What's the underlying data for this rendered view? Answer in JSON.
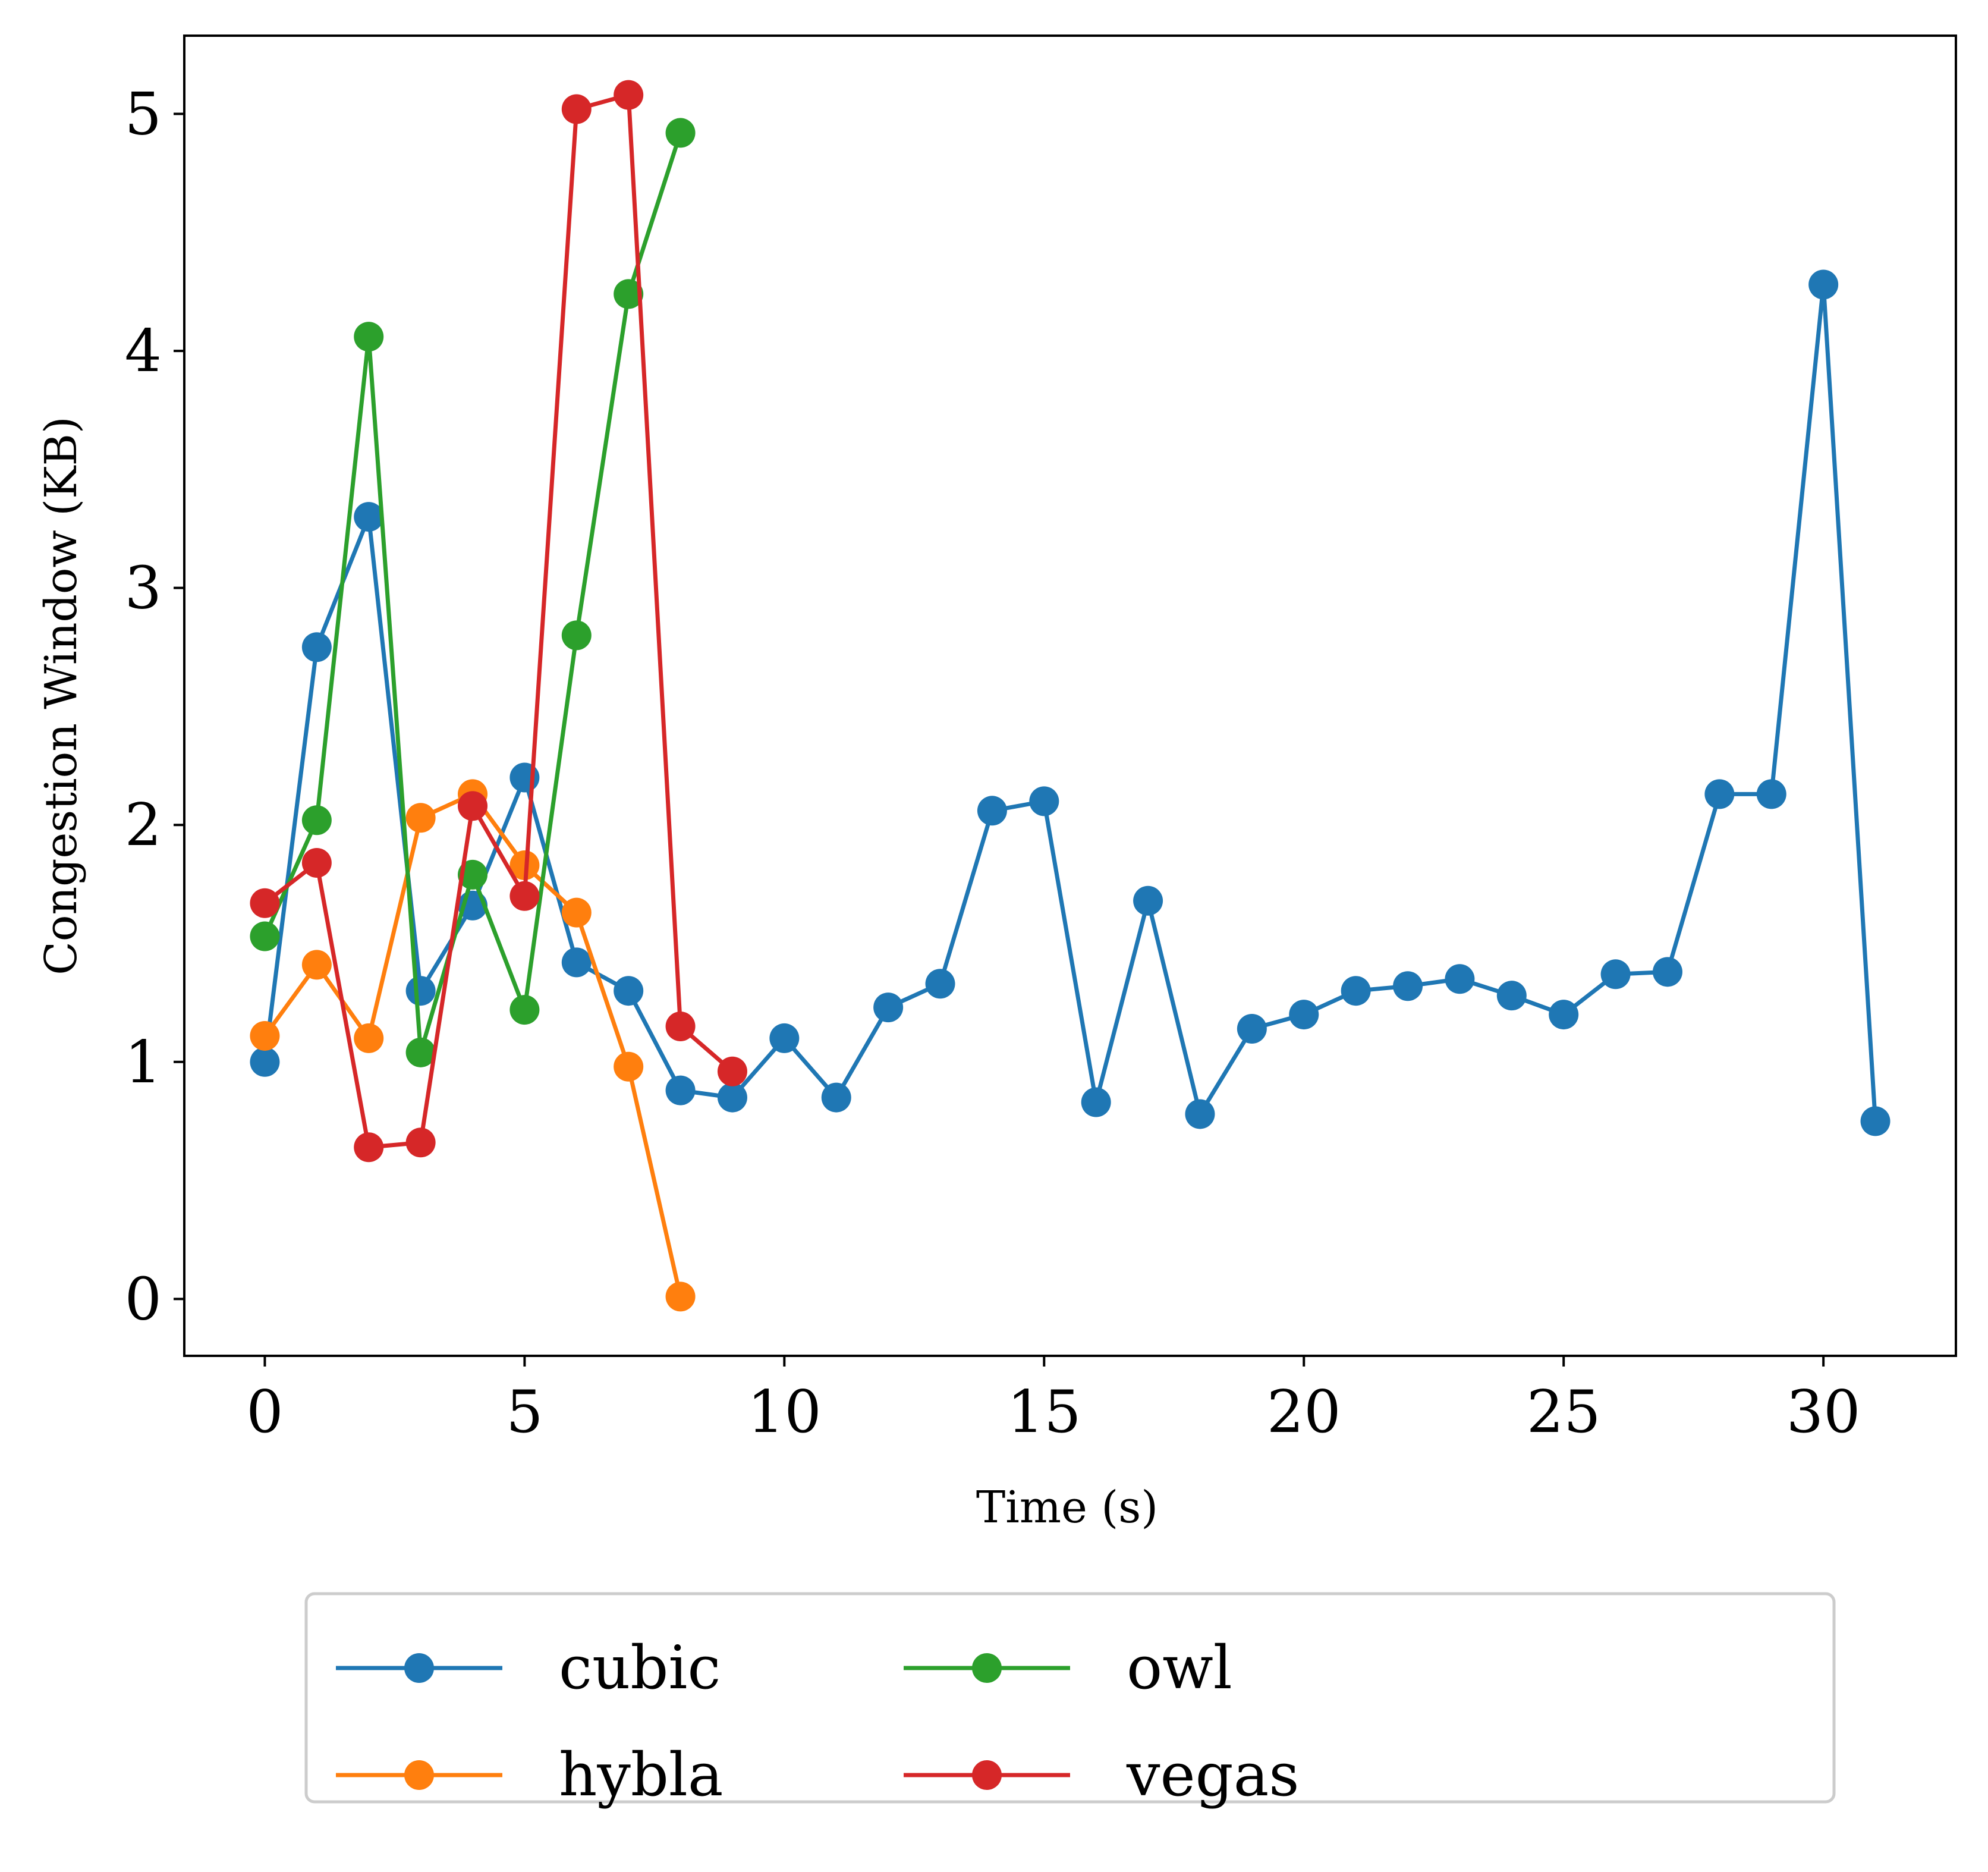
{
  "chart_data": {
    "type": "line",
    "title": "",
    "xlabel": "Time (s)",
    "ylabel": "Congestion Window (KB)",
    "xlim": [
      -1.55,
      32.55
    ],
    "ylim": [
      -0.24,
      5.33
    ],
    "xticks": [
      0,
      5,
      10,
      15,
      20,
      25,
      30
    ],
    "yticks": [
      0,
      1,
      2,
      3,
      4,
      5
    ],
    "grid": false,
    "legend": {
      "placement": "below",
      "columns": 3
    },
    "series": [
      {
        "name": "cubic",
        "color": "#1f77b4",
        "x": [
          0,
          1,
          2,
          3,
          4,
          5,
          6,
          7,
          8,
          9,
          10,
          11,
          12,
          13,
          14,
          15,
          16,
          17,
          18,
          19,
          20,
          21,
          22,
          23,
          24,
          25,
          26,
          27,
          28,
          29,
          30,
          31
        ],
        "y": [
          1.0,
          2.75,
          3.3,
          1.3,
          1.66,
          2.2,
          1.42,
          1.3,
          0.88,
          0.85,
          1.1,
          0.85,
          1.23,
          1.33,
          2.06,
          2.1,
          0.83,
          1.68,
          0.78,
          1.14,
          1.2,
          1.3,
          1.32,
          1.35,
          1.28,
          1.2,
          1.37,
          1.38,
          2.13,
          2.13,
          4.28,
          0.75
        ]
      },
      {
        "name": "hybla",
        "color": "#ff7f0e",
        "x": [
          0,
          1,
          2,
          3,
          4,
          5,
          6,
          7,
          8
        ],
        "y": [
          1.11,
          1.41,
          1.1,
          2.03,
          2.13,
          1.83,
          1.63,
          0.98,
          0.01
        ]
      },
      {
        "name": "owl",
        "color": "#2ca02c",
        "x": [
          0,
          1,
          2,
          3,
          4,
          5,
          6,
          7,
          8
        ],
        "y": [
          1.53,
          2.02,
          4.06,
          1.04,
          1.79,
          1.22,
          2.8,
          4.24,
          4.92
        ]
      },
      {
        "name": "vegas",
        "color": "#d62728",
        "x": [
          0,
          1,
          2,
          3,
          4,
          5,
          6,
          7,
          8,
          9
        ],
        "y": [
          1.67,
          1.84,
          0.64,
          0.66,
          2.08,
          1.7,
          5.02,
          5.08,
          1.15,
          0.96
        ]
      }
    ]
  }
}
